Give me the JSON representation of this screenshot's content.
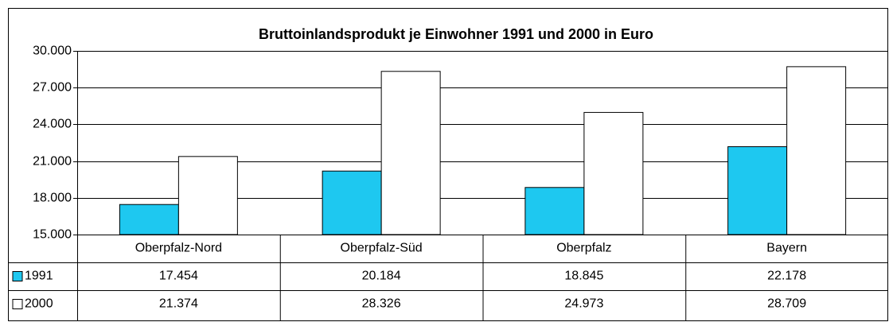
{
  "chart_data": {
    "type": "bar",
    "title": "Bruttoinlandsprodukt je Einwohner 1991 und 2000 in Euro",
    "categories": [
      "Oberpfalz-Nord",
      "Oberpfalz-Süd",
      "Oberpfalz",
      "Bayern"
    ],
    "series": [
      {
        "name": "1991",
        "color": "#1ec8f0",
        "values": [
          17454,
          20184,
          18845,
          22178
        ],
        "value_labels": [
          "17.454",
          "20.184",
          "18.845",
          "22.178"
        ]
      },
      {
        "name": "2000",
        "color": "#ffffff",
        "values": [
          21374,
          28326,
          24973,
          28709
        ],
        "value_labels": [
          "21.374",
          "28.326",
          "24.973",
          "28.709"
        ]
      }
    ],
    "ylim": [
      15000,
      30000
    ],
    "yticks": [
      {
        "value": 15000,
        "label": "15.000"
      },
      {
        "value": 18000,
        "label": "18.000"
      },
      {
        "value": 21000,
        "label": "21.000"
      },
      {
        "value": 24000,
        "label": "24.000"
      },
      {
        "value": 27000,
        "label": "27.000"
      },
      {
        "value": 30000,
        "label": "30.000"
      }
    ],
    "grid": true
  }
}
